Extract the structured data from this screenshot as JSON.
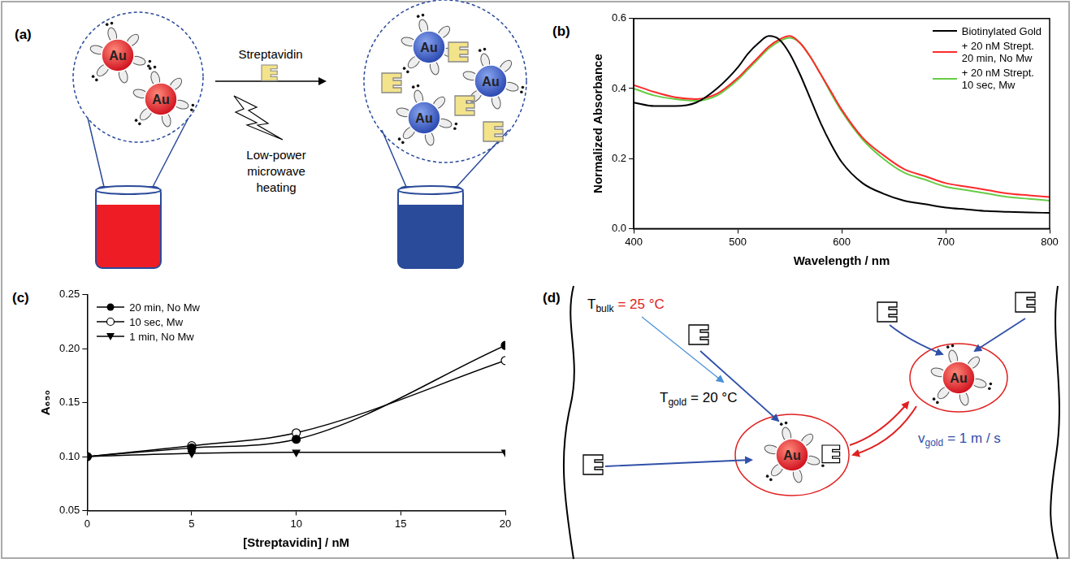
{
  "panels": {
    "a": {
      "panel_label": "(a)",
      "before": [
        "Au",
        "Au"
      ],
      "after": [
        "Au",
        "Au",
        "Au"
      ],
      "reagent": "Streptavidin",
      "treatment": "Low-power microwave heating"
    },
    "d": {
      "panel_label": "(d)",
      "particles": [
        "Au",
        "Au"
      ],
      "bulk_temperature": {
        "symbol": "T",
        "subscript": "bulk",
        "text": "= 25 °C"
      },
      "gold_temperature": {
        "symbol": "T",
        "subscript": "gold",
        "text": "= 20 °C"
      },
      "gold_velocity": {
        "symbol": "v",
        "subscript": "gold",
        "text": "= 1 m / s"
      }
    }
  },
  "chart_data": [
    {
      "type": "line",
      "panel_label": "(b)",
      "xlabel": "Wavelength / nm",
      "ylabel": "Normalized Absorbance",
      "x": [
        400,
        420,
        440,
        460,
        480,
        500,
        510,
        520,
        530,
        540,
        550,
        560,
        570,
        580,
        590,
        600,
        620,
        640,
        660,
        680,
        700,
        720,
        740,
        760,
        780,
        800
      ],
      "series": [
        {
          "name": "Biotinylated Gold",
          "color": "#000000",
          "values": [
            0.36,
            0.35,
            0.35,
            0.36,
            0.4,
            0.46,
            0.5,
            0.53,
            0.55,
            0.54,
            0.5,
            0.44,
            0.37,
            0.3,
            0.24,
            0.19,
            0.13,
            0.1,
            0.08,
            0.07,
            0.06,
            0.055,
            0.05,
            0.048,
            0.046,
            0.045
          ]
        },
        {
          "name": "+ 20 nM Strept.\n20 min, No Mw",
          "color": "#ff2a2a",
          "values": [
            0.41,
            0.39,
            0.375,
            0.37,
            0.385,
            0.43,
            0.46,
            0.49,
            0.52,
            0.54,
            0.55,
            0.53,
            0.49,
            0.44,
            0.39,
            0.34,
            0.26,
            0.21,
            0.17,
            0.15,
            0.13,
            0.12,
            0.11,
            0.1,
            0.095,
            0.09
          ]
        },
        {
          "name": "+ 20 nM Strept.\n10 sec, Mw",
          "color": "#66cc44",
          "values": [
            0.4,
            0.38,
            0.37,
            0.365,
            0.38,
            0.425,
            0.455,
            0.485,
            0.515,
            0.535,
            0.545,
            0.53,
            0.49,
            0.44,
            0.385,
            0.335,
            0.255,
            0.2,
            0.16,
            0.14,
            0.12,
            0.11,
            0.1,
            0.09,
            0.085,
            0.08
          ]
        }
      ],
      "xlim": [
        400,
        800
      ],
      "xticks": [
        400,
        500,
        600,
        700,
        800
      ],
      "ylim": [
        0,
        0.6
      ],
      "yticks": [
        {
          "value": 0,
          "label": "0.0"
        },
        0.2,
        0.4,
        0.6
      ],
      "grid": false,
      "legend": "upper right"
    },
    {
      "type": "line",
      "panel_label": "(c)",
      "xlabel": "[Streptavidin] / nM",
      "ylabel": "A₆₅₀",
      "x": [
        0,
        5,
        10,
        20
      ],
      "series": [
        {
          "name": "20 min, No Mw",
          "color": "#000000",
          "marker": "circle",
          "values": [
            0.1,
            0.108,
            0.116,
            0.203
          ]
        },
        {
          "name": "10 sec,      Mw",
          "color": "#000000",
          "marker": "circle_open",
          "values": [
            0.1,
            0.11,
            0.122,
            0.189
          ]
        },
        {
          "name": "1 min, No Mw",
          "color": "#000000",
          "marker": "triangle_down",
          "values": [
            0.1,
            0.103,
            0.104,
            0.104
          ]
        }
      ],
      "xlim": [
        0,
        20
      ],
      "xticks": [
        0,
        5,
        10,
        15,
        20
      ],
      "ylim": [
        0.05,
        0.25
      ],
      "yticks": [
        0.05,
        {
          "value": 0.1,
          "label": "0.10"
        },
        0.15,
        {
          "value": 0.2,
          "label": "0.20"
        },
        0.25
      ],
      "grid": false,
      "legend": "upper left"
    }
  ]
}
